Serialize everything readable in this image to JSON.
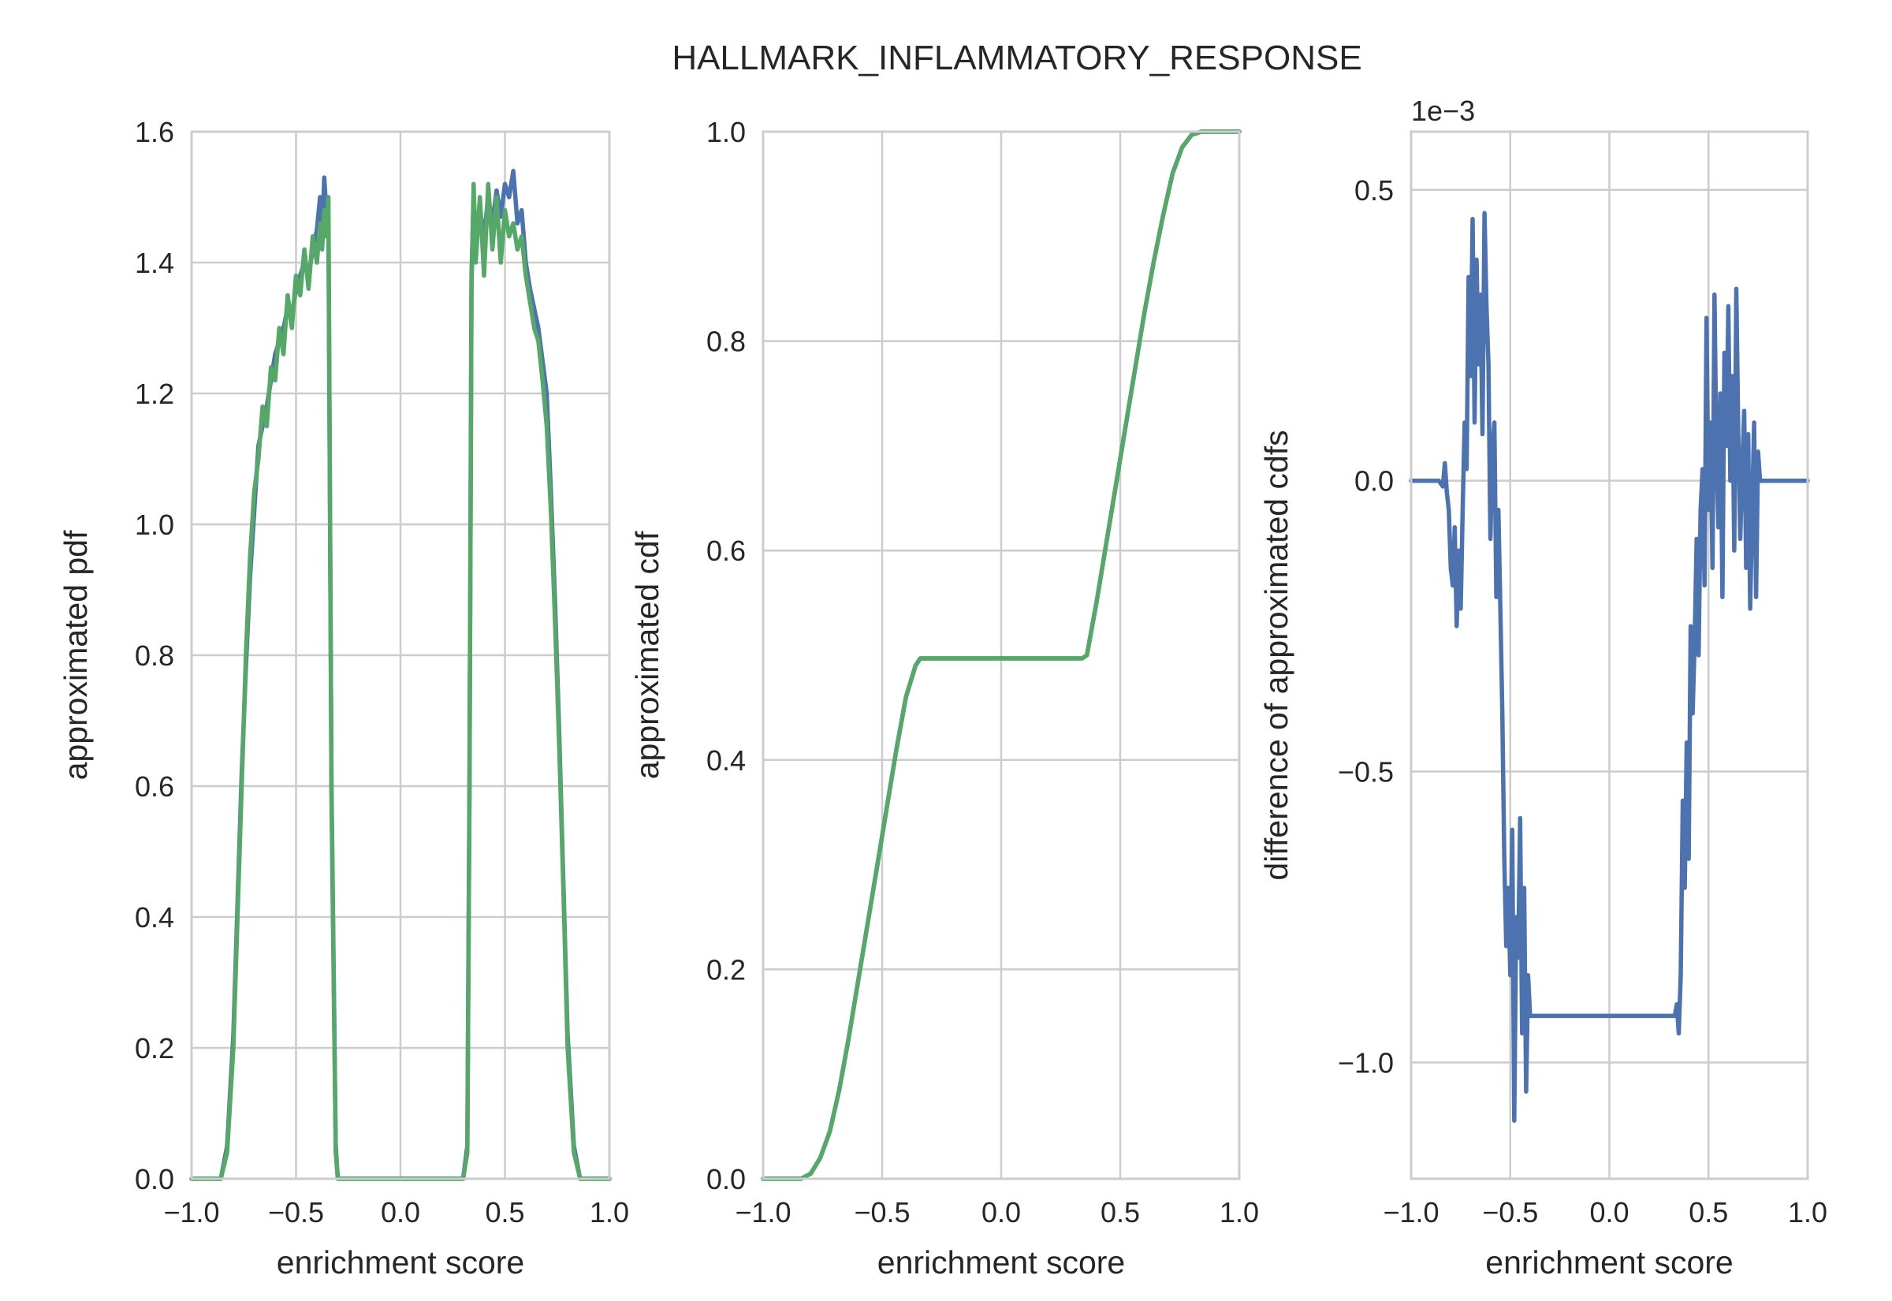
{
  "title": "HALLMARK_INFLAMMATORY_RESPONSE",
  "colors": {
    "blue": "#4c72b0",
    "green": "#55a868",
    "grid": "#cccccc",
    "text": "#262626"
  },
  "chart_data": [
    {
      "type": "line",
      "xlabel": "enrichment score",
      "ylabel": "approximated pdf",
      "xlim": [
        -1.0,
        1.0
      ],
      "ylim": [
        0.0,
        1.6
      ],
      "xticks": [
        -1.0,
        -0.5,
        0.0,
        0.5,
        1.0
      ],
      "xtick_labels": [
        "−1.0",
        "−0.5",
        "0.0",
        "0.5",
        "1.0"
      ],
      "yticks": [
        0.0,
        0.2,
        0.4,
        0.6,
        0.8,
        1.0,
        1.2,
        1.4,
        1.6
      ],
      "ytick_labels": [
        "0.0",
        "0.2",
        "0.4",
        "0.6",
        "0.8",
        "1.0",
        "1.2",
        "1.4",
        "1.6"
      ],
      "grid": true,
      "series": [
        {
          "color": "#4c72b0",
          "x": [
            -1.0,
            -0.86,
            -0.83,
            -0.8,
            -0.78,
            -0.76,
            -0.74,
            -0.72,
            -0.7,
            -0.68,
            -0.66,
            -0.64,
            -0.62,
            -0.6,
            -0.58,
            -0.56,
            -0.54,
            -0.52,
            -0.5,
            -0.48,
            -0.46,
            -0.44,
            -0.42,
            -0.4,
            -0.385,
            -0.375,
            -0.365,
            -0.355,
            -0.345,
            -0.33,
            -0.31,
            -0.3,
            0.3,
            0.32,
            0.33,
            0.34,
            0.35,
            0.36,
            0.38,
            0.4,
            0.42,
            0.44,
            0.46,
            0.48,
            0.5,
            0.52,
            0.54,
            0.56,
            0.58,
            0.6,
            0.62,
            0.64,
            0.66,
            0.68,
            0.7,
            0.72,
            0.74,
            0.76,
            0.78,
            0.8,
            0.83,
            0.86,
            1.0
          ],
          "y": [
            0.0,
            0.0,
            0.05,
            0.22,
            0.42,
            0.62,
            0.78,
            0.92,
            1.02,
            1.12,
            1.15,
            1.18,
            1.22,
            1.26,
            1.28,
            1.3,
            1.33,
            1.32,
            1.36,
            1.38,
            1.4,
            1.38,
            1.42,
            1.45,
            1.5,
            1.44,
            1.53,
            1.48,
            1.46,
            0.6,
            0.05,
            0.0,
            0.0,
            0.05,
            0.6,
            1.38,
            1.5,
            1.45,
            1.48,
            1.44,
            1.5,
            1.46,
            1.51,
            1.47,
            1.52,
            1.5,
            1.54,
            1.46,
            1.48,
            1.4,
            1.36,
            1.33,
            1.3,
            1.25,
            1.2,
            1.05,
            0.88,
            0.68,
            0.45,
            0.22,
            0.05,
            0.0,
            0.0
          ]
        },
        {
          "color": "#55a868",
          "x": [
            -1.0,
            -0.86,
            -0.83,
            -0.8,
            -0.78,
            -0.76,
            -0.74,
            -0.72,
            -0.7,
            -0.68,
            -0.66,
            -0.64,
            -0.62,
            -0.6,
            -0.58,
            -0.56,
            -0.54,
            -0.52,
            -0.5,
            -0.48,
            -0.46,
            -0.44,
            -0.42,
            -0.4,
            -0.385,
            -0.375,
            -0.365,
            -0.355,
            -0.345,
            -0.33,
            -0.31,
            -0.3,
            0.3,
            0.32,
            0.33,
            0.34,
            0.35,
            0.36,
            0.38,
            0.4,
            0.42,
            0.44,
            0.46,
            0.48,
            0.5,
            0.52,
            0.54,
            0.56,
            0.58,
            0.6,
            0.62,
            0.64,
            0.66,
            0.68,
            0.7,
            0.72,
            0.74,
            0.76,
            0.78,
            0.8,
            0.83,
            0.86,
            1.0
          ],
          "y": [
            0.0,
            0.0,
            0.04,
            0.2,
            0.4,
            0.6,
            0.8,
            0.95,
            1.05,
            1.1,
            1.18,
            1.15,
            1.24,
            1.22,
            1.3,
            1.26,
            1.35,
            1.3,
            1.38,
            1.35,
            1.42,
            1.36,
            1.44,
            1.4,
            1.46,
            1.42,
            1.48,
            1.44,
            1.5,
            0.58,
            0.04,
            0.0,
            0.0,
            0.04,
            0.58,
            1.36,
            1.52,
            1.4,
            1.5,
            1.38,
            1.52,
            1.42,
            1.5,
            1.4,
            1.48,
            1.44,
            1.46,
            1.42,
            1.44,
            1.38,
            1.34,
            1.3,
            1.28,
            1.22,
            1.15,
            1.02,
            0.85,
            0.66,
            0.44,
            0.2,
            0.04,
            0.0,
            0.0
          ]
        }
      ]
    },
    {
      "type": "line",
      "xlabel": "enrichment score",
      "ylabel": "approximated cdf",
      "xlim": [
        -1.0,
        1.0
      ],
      "ylim": [
        0.0,
        1.0
      ],
      "xticks": [
        -1.0,
        -0.5,
        0.0,
        0.5,
        1.0
      ],
      "xtick_labels": [
        "−1.0",
        "−0.5",
        "0.0",
        "0.5",
        "1.0"
      ],
      "yticks": [
        0.0,
        0.2,
        0.4,
        0.6,
        0.8,
        1.0
      ],
      "ytick_labels": [
        "0.0",
        "0.2",
        "0.4",
        "0.6",
        "0.8",
        "1.0"
      ],
      "grid": true,
      "series": [
        {
          "color": "#4c72b0",
          "x": [
            -1.0,
            -0.84,
            -0.8,
            -0.76,
            -0.72,
            -0.68,
            -0.64,
            -0.6,
            -0.56,
            -0.52,
            -0.48,
            -0.44,
            -0.4,
            -0.36,
            -0.34,
            -0.33,
            -0.3,
            0.3,
            0.33,
            0.34,
            0.36,
            0.4,
            0.44,
            0.48,
            0.52,
            0.56,
            0.6,
            0.64,
            0.68,
            0.72,
            0.76,
            0.8,
            0.84,
            1.0
          ],
          "y": [
            0.0,
            0.0,
            0.005,
            0.02,
            0.045,
            0.085,
            0.135,
            0.19,
            0.245,
            0.3,
            0.355,
            0.41,
            0.46,
            0.49,
            0.497,
            0.497,
            0.497,
            0.497,
            0.497,
            0.497,
            0.5,
            0.55,
            0.605,
            0.66,
            0.715,
            0.77,
            0.825,
            0.875,
            0.92,
            0.96,
            0.985,
            0.997,
            1.0,
            1.0
          ]
        },
        {
          "color": "#55a868",
          "x": [
            -1.0,
            -0.84,
            -0.8,
            -0.76,
            -0.72,
            -0.68,
            -0.64,
            -0.6,
            -0.56,
            -0.52,
            -0.48,
            -0.44,
            -0.4,
            -0.36,
            -0.34,
            -0.33,
            -0.3,
            0.3,
            0.33,
            0.34,
            0.36,
            0.4,
            0.44,
            0.48,
            0.52,
            0.56,
            0.6,
            0.64,
            0.68,
            0.72,
            0.76,
            0.8,
            0.84,
            1.0
          ],
          "y": [
            0.0,
            0.0,
            0.005,
            0.02,
            0.045,
            0.085,
            0.135,
            0.19,
            0.245,
            0.3,
            0.355,
            0.41,
            0.46,
            0.49,
            0.497,
            0.497,
            0.497,
            0.497,
            0.497,
            0.497,
            0.5,
            0.55,
            0.605,
            0.66,
            0.715,
            0.77,
            0.825,
            0.875,
            0.92,
            0.96,
            0.985,
            0.997,
            1.0,
            1.0
          ]
        }
      ]
    },
    {
      "type": "line",
      "xlabel": "enrichment score",
      "ylabel": "difference of approximated cdfs",
      "offset_label": "1e−3",
      "xlim": [
        -1.0,
        1.0
      ],
      "ylim": [
        -1.2,
        0.6
      ],
      "xticks": [
        -1.0,
        -0.5,
        0.0,
        0.5,
        1.0
      ],
      "xtick_labels": [
        "−1.0",
        "−0.5",
        "0.0",
        "0.5",
        "1.0"
      ],
      "yticks": [
        -1.0,
        -0.5,
        0.0,
        0.5
      ],
      "ytick_labels": [
        "−1.0",
        "−0.5",
        "0.0",
        "0.5"
      ],
      "grid": true,
      "series": [
        {
          "color": "#4c72b0",
          "x": [
            -1.0,
            -0.86,
            -0.84,
            -0.83,
            -0.82,
            -0.81,
            -0.8,
            -0.79,
            -0.78,
            -0.77,
            -0.76,
            -0.75,
            -0.74,
            -0.73,
            -0.72,
            -0.71,
            -0.7,
            -0.69,
            -0.68,
            -0.67,
            -0.66,
            -0.65,
            -0.64,
            -0.63,
            -0.62,
            -0.61,
            -0.6,
            -0.59,
            -0.58,
            -0.57,
            -0.56,
            -0.55,
            -0.54,
            -0.53,
            -0.52,
            -0.51,
            -0.5,
            -0.49,
            -0.48,
            -0.47,
            -0.46,
            -0.45,
            -0.44,
            -0.43,
            -0.42,
            -0.41,
            -0.4,
            -0.39,
            -0.38,
            -0.37,
            -0.36,
            -0.35,
            -0.34,
            -0.33,
            -0.32,
            -0.31,
            -0.3,
            0.32,
            0.33,
            0.34,
            0.35,
            0.36,
            0.37,
            0.38,
            0.39,
            0.4,
            0.41,
            0.42,
            0.43,
            0.44,
            0.45,
            0.46,
            0.47,
            0.48,
            0.49,
            0.5,
            0.51,
            0.52,
            0.53,
            0.54,
            0.55,
            0.56,
            0.57,
            0.58,
            0.59,
            0.6,
            0.61,
            0.62,
            0.63,
            0.64,
            0.65,
            0.66,
            0.67,
            0.68,
            0.69,
            0.7,
            0.71,
            0.72,
            0.73,
            0.74,
            0.75,
            0.76,
            0.78,
            0.8,
            1.0
          ],
          "y": [
            0.0,
            0.0,
            -0.01,
            0.03,
            -0.02,
            -0.05,
            -0.15,
            -0.18,
            -0.08,
            -0.25,
            -0.12,
            -0.22,
            -0.05,
            0.1,
            0.02,
            0.35,
            0.18,
            0.45,
            0.1,
            0.38,
            0.2,
            0.32,
            0.08,
            0.46,
            0.3,
            0.2,
            -0.1,
            0.05,
            0.1,
            -0.2,
            -0.05,
            -0.22,
            -0.4,
            -0.65,
            -0.8,
            -0.7,
            -0.85,
            -0.6,
            -1.1,
            -0.75,
            -0.82,
            -0.58,
            -0.95,
            -0.7,
            -1.05,
            -0.85,
            -0.92,
            -0.92,
            -0.92,
            -0.92,
            -0.92,
            -0.92,
            -0.92,
            -0.92,
            -0.92,
            -0.92,
            -0.92,
            -0.92,
            -0.92,
            -0.9,
            -0.95,
            -0.85,
            -0.55,
            -0.7,
            -0.45,
            -0.65,
            -0.25,
            -0.4,
            -0.28,
            -0.1,
            -0.3,
            -0.05,
            0.02,
            -0.18,
            0.28,
            -0.05,
            0.1,
            -0.15,
            0.32,
            0.05,
            -0.08,
            0.15,
            -0.2,
            0.22,
            0.06,
            0.3,
            0.0,
            0.18,
            -0.12,
            0.33,
            0.08,
            -0.1,
            0.02,
            0.12,
            -0.15,
            0.08,
            -0.22,
            -0.05,
            0.1,
            -0.2,
            0.05,
            0.0,
            0.0,
            0.0,
            0.0
          ]
        }
      ]
    }
  ]
}
